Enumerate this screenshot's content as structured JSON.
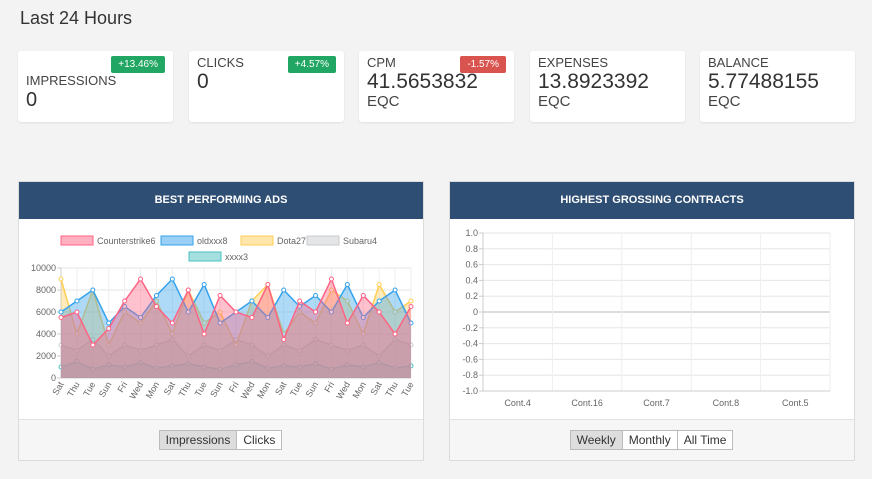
{
  "header": {
    "title": "Last 24 Hours"
  },
  "cards": [
    {
      "label": "IMPRESSIONS",
      "value": "0",
      "badge": "+13.46%",
      "badge_color": "#21a663"
    },
    {
      "label": "CLICKS",
      "value": "0",
      "badge": "+4.57%",
      "badge_color": "#21a663"
    },
    {
      "label": "CPM",
      "value": "41.5653832",
      "unit": "EQC",
      "badge": "-1.57%",
      "badge_color": "#d9534f"
    },
    {
      "label": "EXPENSES",
      "value": "13.8923392",
      "unit": "EQC"
    },
    {
      "label": "BALANCE",
      "value": "5.77488155",
      "unit": "EQC"
    }
  ],
  "chart_data": [
    {
      "type": "line",
      "title": "BEST PERFORMING ADS",
      "categories": [
        "Sat",
        "Thu",
        "Tue",
        "Sun",
        "Fri",
        "Wed",
        "Mon",
        "Sat",
        "Thu",
        "Tue",
        "Sun",
        "Fri",
        "Wed",
        "Mon",
        "Sat",
        "Tue",
        "Sun",
        "Fri",
        "Wed",
        "Mon",
        "Sat",
        "Thu",
        "Tue"
      ],
      "series": [
        {
          "name": "Counterstrike6",
          "color": "#ff6384",
          "values": [
            5500,
            6000,
            3000,
            4500,
            7000,
            9000,
            6500,
            5000,
            8000,
            4000,
            7500,
            6000,
            5500,
            8500,
            3500,
            7000,
            6000,
            9000,
            5000,
            7500,
            6000,
            4000,
            6500
          ]
        },
        {
          "name": "oldxxx8",
          "color": "#36a2eb",
          "values": [
            6000,
            7000,
            8000,
            5000,
            6500,
            5500,
            7500,
            9000,
            6000,
            8500,
            5000,
            6000,
            7000,
            5500,
            8000,
            6500,
            7500,
            6000,
            8500,
            5500,
            7000,
            8000,
            5000
          ]
        },
        {
          "name": "Dota27",
          "color": "#ffce56",
          "values": [
            9000,
            4000,
            8000,
            3000,
            6000,
            5000,
            7000,
            4000,
            8000,
            5000,
            6000,
            3000,
            7000,
            8500,
            4000,
            6000,
            5000,
            8000,
            7000,
            4000,
            8500,
            6000,
            7000
          ]
        },
        {
          "name": "Subaru4",
          "color": "#c9cbcf",
          "values": [
            3000,
            2500,
            3500,
            2000,
            3000,
            2500,
            3000,
            3500,
            2000,
            3000,
            2500,
            3500,
            3000,
            2000,
            3000,
            2500,
            3500,
            3000,
            2500,
            3000,
            2000,
            3500,
            3000
          ]
        },
        {
          "name": "xxxx3",
          "color": "#4bc0c0",
          "values": [
            1000,
            1500,
            800,
            1200,
            1000,
            1400,
            900,
            1100,
            1300,
            1000,
            800,
            1200,
            1500,
            900,
            1100,
            1000,
            1300,
            800,
            1200,
            1000,
            1400,
            900,
            1100
          ]
        }
      ],
      "ylim": [
        0,
        10000
      ],
      "yticks": [
        0,
        2000,
        4000,
        6000,
        8000,
        10000
      ],
      "grid": true,
      "legend": "top",
      "buttons": [
        "Impressions",
        "Clicks"
      ],
      "active_button": 0
    },
    {
      "type": "line",
      "title": "HIGHEST GROSSING CONTRACTS",
      "categories": [
        "Cont.4",
        "Cont.16",
        "Cont.7",
        "Cont.8",
        "Cont.5"
      ],
      "ylim": [
        -1,
        1
      ],
      "yticks": [
        {
          "value": 1,
          "label": "1.0"
        },
        0.8,
        0.6,
        0.4,
        0.2,
        0,
        -0.2,
        -0.4,
        -0.6,
        -0.8,
        {
          "value": -1,
          "label": "-1.0"
        }
      ],
      "grid": true,
      "buttons": [
        "Weekly",
        "Monthly",
        "All Time"
      ],
      "active_button": 0
    }
  ]
}
